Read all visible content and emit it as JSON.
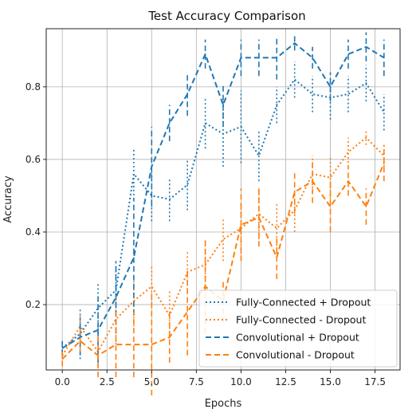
{
  "chart_data": {
    "type": "line",
    "title": "Test Accuracy Comparison",
    "xlabel": "Epochs",
    "ylabel": "Accuracy",
    "xlim": [
      -0.9,
      18.9
    ],
    "ylim": [
      0.02,
      0.96
    ],
    "x_ticks": [
      0.0,
      2.5,
      5.0,
      7.5,
      10.0,
      12.5,
      15.0,
      17.5
    ],
    "x_tick_labels": [
      "0.0",
      "2.5",
      "5.0",
      "7.5",
      "10.0",
      "12.5",
      "15.0",
      "17.5"
    ],
    "y_ticks": [
      0.2,
      0.4,
      0.6,
      0.8
    ],
    "y_tick_labels": [
      "0.2",
      "0.4",
      "0.6",
      "0.8"
    ],
    "grid": true,
    "legend_position": "lower-right",
    "x": [
      0,
      1,
      2,
      3,
      4,
      5,
      6,
      7,
      8,
      9,
      10,
      11,
      12,
      13,
      14,
      15,
      16,
      17,
      18
    ],
    "series": [
      {
        "name": "Fully-Connected + Dropout",
        "color": "#1f77b4",
        "linestyle": "dotted",
        "values": [
          0.08,
          0.12,
          0.19,
          0.24,
          0.56,
          0.5,
          0.49,
          0.53,
          0.7,
          0.67,
          0.69,
          0.61,
          0.75,
          0.82,
          0.78,
          0.77,
          0.78,
          0.81,
          0.73
        ],
        "errors": [
          0.02,
          0.07,
          0.07,
          0.07,
          0.07,
          0.07,
          0.06,
          0.07,
          0.07,
          0.09,
          0.1,
          0.07,
          0.05,
          0.05,
          0.05,
          0.06,
          0.05,
          0.05,
          0.05
        ]
      },
      {
        "name": "Fully-Connected - Dropout",
        "color": "#ff7f0e",
        "linestyle": "dotted",
        "values": [
          0.06,
          0.14,
          0.07,
          0.16,
          0.21,
          0.25,
          0.17,
          0.29,
          0.31,
          0.38,
          0.41,
          0.45,
          0.41,
          0.46,
          0.56,
          0.55,
          0.62,
          0.66,
          0.61
        ],
        "errors": [
          0.02,
          0.03,
          0.04,
          0.07,
          0.07,
          0.06,
          0.07,
          0.06,
          0.07,
          0.06,
          0.07,
          0.07,
          0.07,
          0.06,
          0.05,
          0.06,
          0.04,
          0.02,
          0.03
        ]
      },
      {
        "name": "Convolutional + Dropout",
        "color": "#1f77b4",
        "linestyle": "dashed",
        "values": [
          0.08,
          0.11,
          0.13,
          0.22,
          0.33,
          0.58,
          0.7,
          0.78,
          0.89,
          0.75,
          0.88,
          0.88,
          0.88,
          0.92,
          0.88,
          0.8,
          0.89,
          0.91,
          0.88
        ],
        "errors": [
          0.02,
          0.05,
          0.09,
          0.1,
          0.16,
          0.11,
          0.05,
          0.06,
          0.04,
          0.06,
          0.05,
          0.05,
          0.06,
          0.02,
          0.03,
          0.04,
          0.04,
          0.04,
          0.05
        ]
      },
      {
        "name": "Convolutional - Dropout",
        "color": "#ff7f0e",
        "linestyle": "dashed",
        "values": [
          0.05,
          0.1,
          0.06,
          0.09,
          0.09,
          0.09,
          0.11,
          0.18,
          0.25,
          0.21,
          0.42,
          0.44,
          0.33,
          0.51,
          0.54,
          0.47,
          0.54,
          0.47,
          0.59
        ],
        "errors": [
          0.02,
          0.03,
          0.06,
          0.09,
          0.09,
          0.14,
          0.07,
          0.12,
          0.13,
          0.06,
          0.1,
          0.08,
          0.06,
          0.06,
          0.06,
          0.07,
          0.04,
          0.05,
          0.05
        ]
      }
    ]
  }
}
